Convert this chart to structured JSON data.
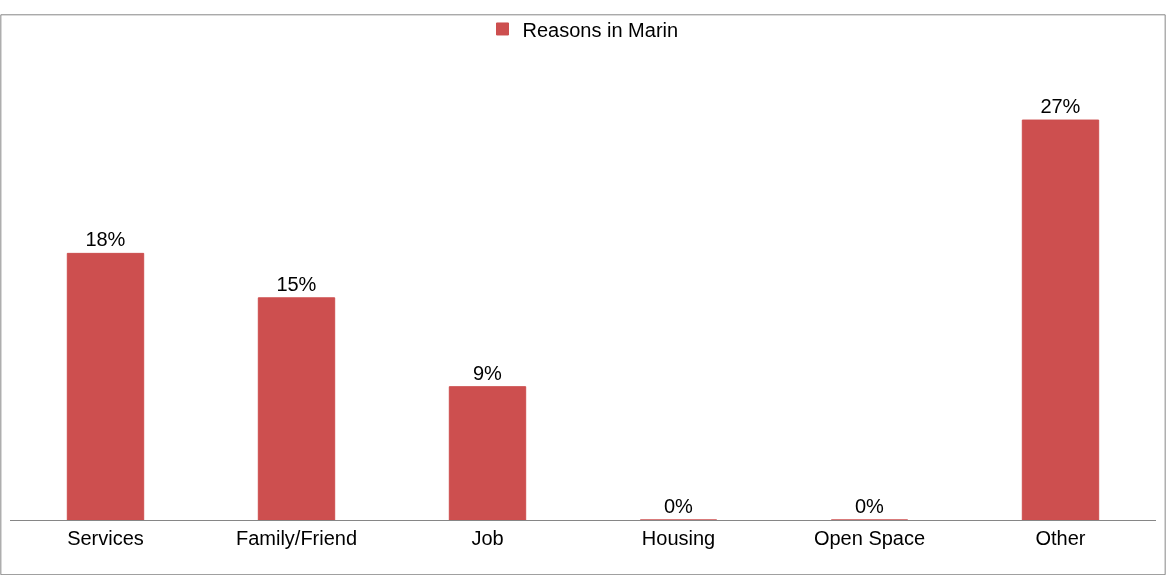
{
  "chart_data": {
    "type": "bar",
    "categories": [
      "Services",
      "Family/Friend",
      "Job",
      "Housing",
      "Open Space",
      "Other"
    ],
    "series": [
      {
        "name": "Reasons in Marin",
        "color": "#cd4f4f",
        "values": [
          18,
          15,
          9,
          0,
          0,
          27
        ],
        "value_labels": [
          "18%",
          "15%",
          "9%",
          "0%",
          "0%",
          "27%"
        ]
      }
    ],
    "legend": "top"
  }
}
